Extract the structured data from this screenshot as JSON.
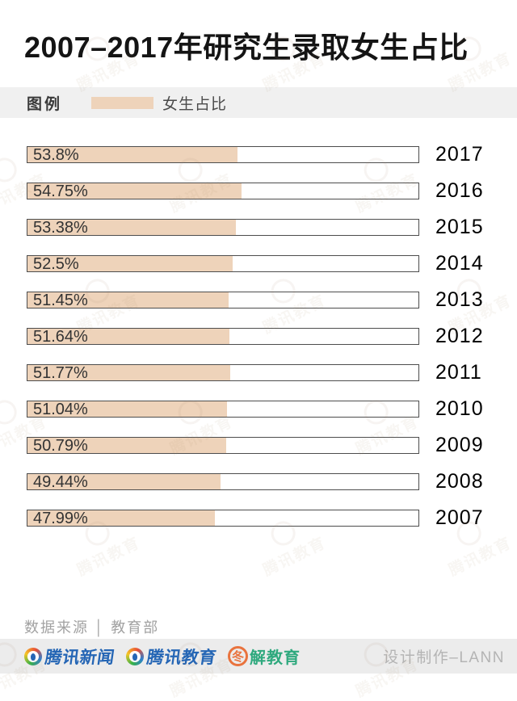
{
  "header": {
    "title": "2007–2017年研究生录取女生占比"
  },
  "legend": {
    "label": "图例",
    "series_label": "女生占比"
  },
  "chart_data": {
    "type": "bar",
    "orientation": "horizontal",
    "title": "2007–2017年研究生录取女生占比",
    "series_name": "女生占比",
    "categories": [
      "2017",
      "2016",
      "2015",
      "2014",
      "2013",
      "2012",
      "2011",
      "2010",
      "2009",
      "2008",
      "2007"
    ],
    "values": [
      53.8,
      54.75,
      53.38,
      52.5,
      51.45,
      51.64,
      51.77,
      51.04,
      50.79,
      49.44,
      47.99
    ],
    "value_labels": [
      "53.8%",
      "54.75%",
      "53.38%",
      "52.5%",
      "51.45%",
      "51.64%",
      "51.77%",
      "51.04%",
      "50.79%",
      "49.44%",
      "47.99%"
    ],
    "xlim": [
      0,
      100
    ],
    "grid": false,
    "legend_position": "top"
  },
  "footer": {
    "source": "数据来源 │ 教育部",
    "credit": "设计制作–LANN"
  },
  "logos": {
    "news_label": "腾讯新闻",
    "edu_label": "腾讯教育",
    "tujie_label": "解教育"
  },
  "watermark": {
    "text": "腾讯教育"
  },
  "colors": {
    "bar_fill": "#eed3ba",
    "track_border": "#4d4d4d",
    "legend_bg": "#f0f0f0",
    "bottombar_bg": "#ececec",
    "tencent_blue": "#2566b5",
    "tujie_green": "#2fa97e",
    "tujie_orange": "#e9733e"
  }
}
